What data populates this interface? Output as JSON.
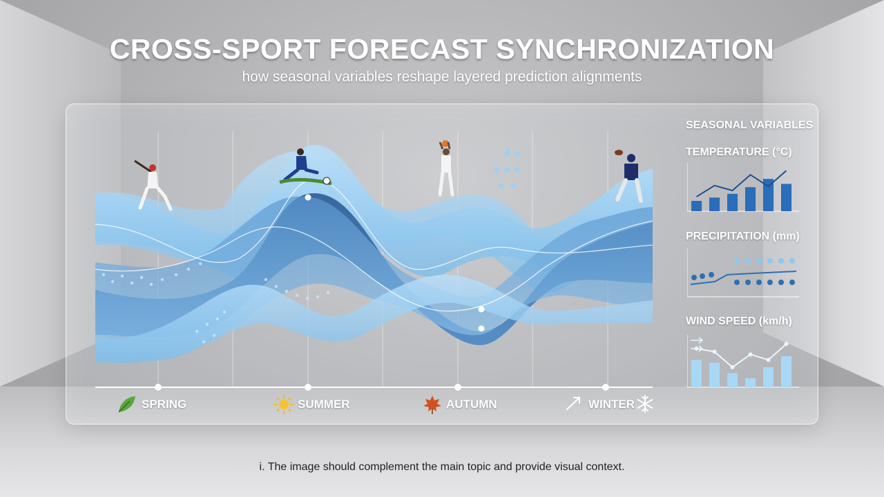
{
  "title": "CROSS-SPORT FORECAST SYNCHRONIZATION",
  "subtitle": "how seasonal variables reshape layered prediction alignments",
  "seasons": [
    {
      "label": "SPRING",
      "icon": "leaf-icon"
    },
    {
      "label": "SUMMER",
      "icon": "sun-icon"
    },
    {
      "label": "AUTUMN",
      "icon": "maple-leaf-icon"
    },
    {
      "label": "WINTER",
      "icon": "snowflake-icon"
    }
  ],
  "sports": [
    "baseball-player-icon",
    "soccer-player-icon",
    "basketball-player-icon",
    "football-player-icon"
  ],
  "variables": {
    "heading": "SEASONAL VARIABLES",
    "temperature": {
      "label": "TEMPERATURE (°C)",
      "bars": [
        0.25,
        0.33,
        0.42,
        0.58,
        0.78,
        0.66
      ],
      "line": [
        0.35,
        0.62,
        0.5,
        0.88,
        0.6,
        0.98
      ],
      "bar_color": "#2a6db8",
      "line_color": "#1f4f8f"
    },
    "precipitation": {
      "label": "PRECIPITATION (mm)",
      "line_color": "#2e6fb0"
    },
    "wind": {
      "label": "WIND SPEED (km/h)",
      "bars": [
        0.6,
        0.54,
        0.31,
        0.2,
        0.44,
        0.68
      ],
      "line": [
        0.85,
        0.78,
        0.44,
        0.72,
        0.6,
        0.95
      ],
      "bar_color": "#a9d8f7",
      "line_color": "#eaf6ff"
    }
  },
  "caption": "i. The image should complement the main topic and provide visual context.",
  "colors": {
    "light": "#9fd0f2",
    "mid": "#5a97cf",
    "dark": "#2f5f97",
    "deep": "#244f84"
  }
}
